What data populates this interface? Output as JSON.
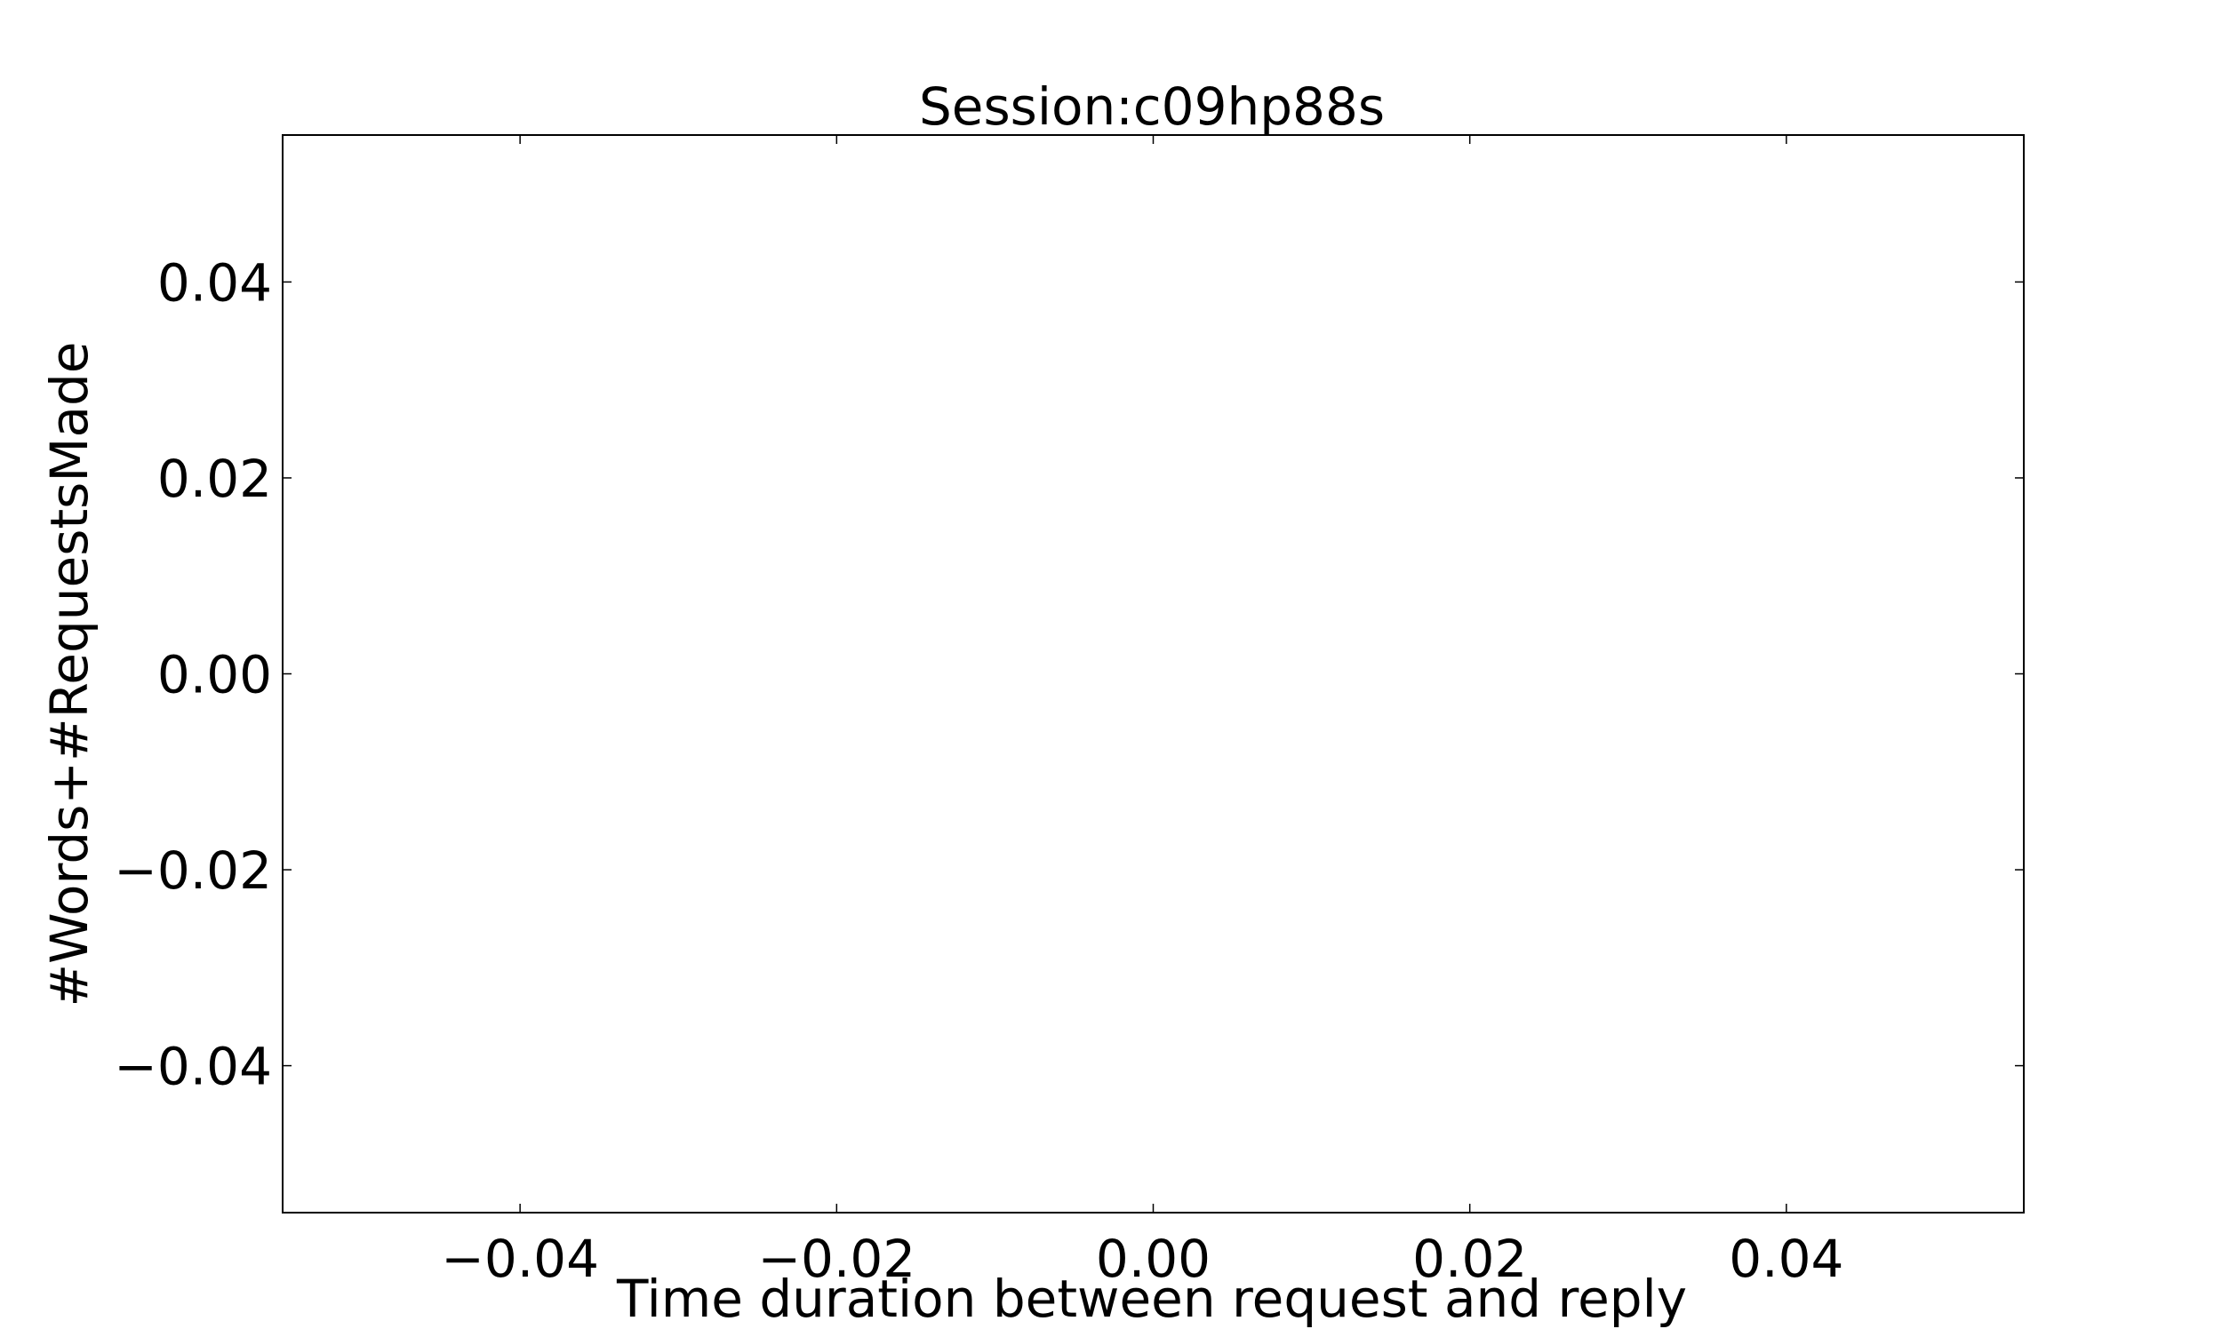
{
  "chart_data": {
    "type": "scatter",
    "title": "Session:c09hp88s",
    "xlabel": "Time duration between request and reply",
    "ylabel": "#Words+#RequestsMade",
    "xlim": [
      -0.055,
      0.055
    ],
    "ylim": [
      -0.055,
      0.055
    ],
    "x_ticks": [
      -0.04,
      -0.02,
      0.0,
      0.02,
      0.04
    ],
    "y_ticks": [
      -0.04,
      -0.02,
      0.0,
      0.02,
      0.04
    ],
    "x_tick_labels": [
      "−0.04",
      "−0.02",
      "0.00",
      "0.02",
      "0.04"
    ],
    "y_tick_labels": [
      "−0.04",
      "−0.02",
      "0.00",
      "0.02",
      "0.04"
    ],
    "series": [],
    "grid": false,
    "legend": false
  }
}
